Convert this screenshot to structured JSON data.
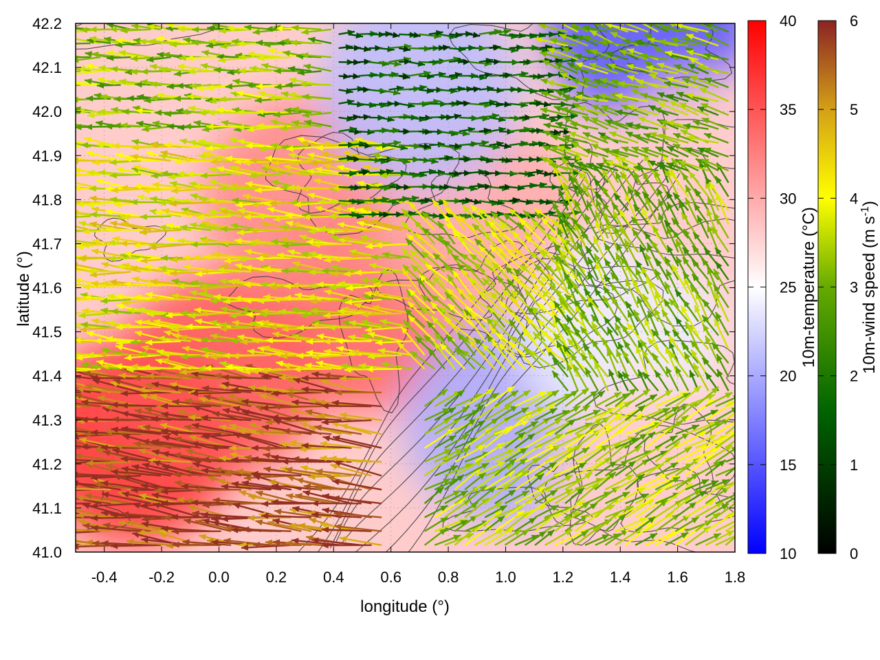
{
  "chart_data": {
    "type": "heatmap",
    "overlays": [
      "wind-vectors",
      "terrain-contours"
    ],
    "xlabel": "longitude (°)",
    "ylabel": "latitude (°)",
    "xlim": [
      -0.5,
      1.8
    ],
    "ylim": [
      41.0,
      42.2
    ],
    "xticks": [
      "-0.4",
      "-0.2",
      "0.0",
      "0.2",
      "0.4",
      "0.6",
      "0.8",
      "1.0",
      "1.2",
      "1.4",
      "1.6",
      "1.8"
    ],
    "xtick_values": [
      -0.4,
      -0.2,
      0.0,
      0.2,
      0.4,
      0.6,
      0.8,
      1.0,
      1.2,
      1.4,
      1.6,
      1.8
    ],
    "yticks": [
      "41.0",
      "41.1",
      "41.2",
      "41.3",
      "41.4",
      "41.5",
      "41.6",
      "41.7",
      "41.8",
      "41.9",
      "42.0",
      "42.1",
      "42.2"
    ],
    "ytick_values": [
      41.0,
      41.1,
      41.2,
      41.3,
      41.4,
      41.5,
      41.6,
      41.7,
      41.8,
      41.9,
      42.0,
      42.1,
      42.2
    ],
    "grid": true,
    "temperature_colorbar": {
      "label": "10m-temperature (°C)",
      "range": [
        10,
        40
      ],
      "ticks": [
        "10",
        "15",
        "20",
        "25",
        "30",
        "35",
        "40"
      ],
      "tick_values": [
        10,
        15,
        20,
        25,
        30,
        35,
        40
      ],
      "colors": [
        "#0000ff",
        "#ffffff",
        "#ff0000"
      ],
      "color_stops": [
        10,
        25,
        40
      ]
    },
    "wind_colorbar": {
      "label": "10m-wind speed (m s-1)",
      "label_main": "10m-wind speed (m s",
      "label_sup": "-1",
      "label_close": ")",
      "range": [
        0,
        6
      ],
      "ticks": [
        "0",
        "1",
        "2",
        "3",
        "4",
        "5",
        "6"
      ],
      "tick_values": [
        0,
        1,
        2,
        3,
        4,
        5,
        6
      ],
      "colors": [
        "#000000",
        "#006400",
        "#66aa00",
        "#ffff00",
        "#d4a017",
        "#8b2323"
      ],
      "color_stops": [
        0,
        1.6,
        3,
        4,
        5,
        6
      ]
    },
    "temperature_field": {
      "description_points": [
        {
          "lon": -0.3,
          "lat": 41.25,
          "temp": 37
        },
        {
          "lon": 0.0,
          "lat": 41.4,
          "temp": 35
        },
        {
          "lon": 0.5,
          "lat": 41.55,
          "temp": 34
        },
        {
          "lon": 0.3,
          "lat": 41.8,
          "temp": 32
        },
        {
          "lon": 0.9,
          "lat": 41.75,
          "temp": 30
        },
        {
          "lon": 1.0,
          "lat": 41.3,
          "temp": 20
        },
        {
          "lon": 0.7,
          "lat": 42.05,
          "temp": 21
        },
        {
          "lon": 1.5,
          "lat": 42.2,
          "temp": 15
        },
        {
          "lon": 1.4,
          "lat": 41.5,
          "temp": 24
        },
        {
          "lon": 1.5,
          "lat": 41.15,
          "temp": 28
        },
        {
          "lon": 1.7,
          "lat": 41.85,
          "temp": 28
        }
      ]
    },
    "wind_regions": [
      {
        "lon_range": [
          -0.5,
          0.6
        ],
        "lat_range": [
          41.0,
          41.4
        ],
        "u": -1,
        "v": 0.12,
        "speed": 5.6
      },
      {
        "lon_range": [
          -0.5,
          0.7
        ],
        "lat_range": [
          41.4,
          41.95
        ],
        "u": -1,
        "v": 0.08,
        "speed": 4.0
      },
      {
        "lon_range": [
          -0.5,
          0.4
        ],
        "lat_range": [
          41.95,
          42.2
        ],
        "u": -1,
        "v": 0.05,
        "speed": 3.2
      },
      {
        "lon_range": [
          0.4,
          1.2
        ],
        "lat_range": [
          41.75,
          42.2
        ],
        "u": 1,
        "v": 0.0,
        "speed": 1.5
      },
      {
        "lon_range": [
          0.7,
          1.3
        ],
        "lat_range": [
          41.4,
          41.75
        ],
        "u": -0.7,
        "v": 0.7,
        "speed": 3.6
      },
      {
        "lon_range": [
          1.2,
          1.8
        ],
        "lat_range": [
          41.35,
          41.85
        ],
        "u": -0.5,
        "v": 0.85,
        "speed": 3.0
      },
      {
        "lon_range": [
          0.7,
          1.8
        ],
        "lat_range": [
          41.0,
          41.35
        ],
        "u": 0.85,
        "v": 0.5,
        "speed": 3.3
      },
      {
        "lon_range": [
          1.2,
          1.8
        ],
        "lat_range": [
          41.85,
          42.2
        ],
        "u": -0.9,
        "v": 0.3,
        "speed": 3.0
      }
    ]
  }
}
